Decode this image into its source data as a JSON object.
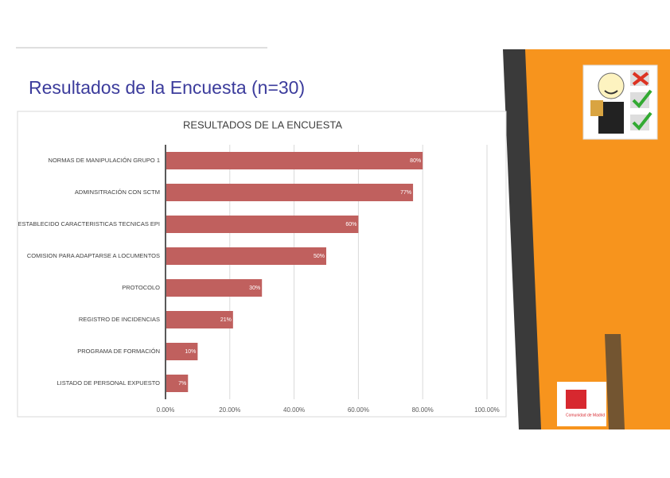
{
  "slide_title": "Resultados de la Encuesta (n=30)",
  "logo_text": "Comunidad de Madrid",
  "chart_data": {
    "type": "barh",
    "title": "RESULTADOS DE LA ENCUESTA",
    "categories": [
      "NORMAS DE MANIPULACIÓN GRUPO 1",
      "ADMINSITRACIÓN CON SCTM",
      "ESTABLECIDO CARACTERISTICAS TECNICAS EPI",
      "COMISION PARA ADAPTARSE A LOCUMENTOS",
      "PROTOCOLO",
      "REGISTRO DE INCIDENCIAS",
      "PROGRAMA DE FORMACIÓN",
      "LISTADO DE PERSONAL EXPUESTO"
    ],
    "values": [
      80,
      77,
      60,
      50,
      30,
      21,
      10,
      7
    ],
    "value_labels": [
      "80%",
      "77%",
      "60%",
      "50%",
      "30%",
      "21%",
      "10%",
      "7%"
    ],
    "color": "#c0605e",
    "xlim": [
      0,
      100
    ],
    "xticks": [
      {
        "value": 0,
        "label": "0.00%"
      },
      {
        "value": 20,
        "label": "20.00%"
      },
      {
        "value": 40,
        "label": "40.00%"
      },
      {
        "value": 60,
        "label": "60.00%"
      },
      {
        "value": 80,
        "label": "80.00%"
      },
      {
        "value": 100,
        "label": "100.00%"
      }
    ],
    "grid": true
  }
}
